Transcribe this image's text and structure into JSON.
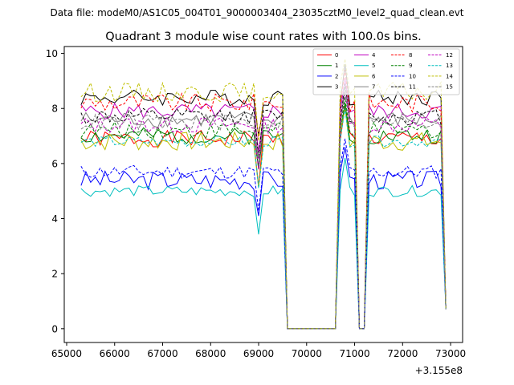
{
  "chart_data": {
    "type": "line",
    "suptitle": "Data file: modeM0/AS1C05_004T01_9000003404_23035cztM0_level2_quad_clean.evt",
    "title": "Quadrant 3 module wise count rates with 100.0s bins.",
    "xlabel": "",
    "ylabel": "",
    "x_offset_label": "+3.155e8",
    "xlim": [
      64950,
      73250
    ],
    "ylim": [
      -0.5,
      10.25
    ],
    "x_ticks": [
      65000,
      66000,
      67000,
      68000,
      69000,
      70000,
      71000,
      72000,
      73000
    ],
    "x_tick_labels": [
      "65000",
      "66000",
      "67000",
      "68000",
      "69000",
      "70000",
      "71000",
      "72000",
      "73000"
    ],
    "y_ticks": [
      0,
      2,
      4,
      6,
      8,
      10
    ],
    "y_tick_labels": [
      "0",
      "2",
      "4",
      "6",
      "8",
      "10"
    ],
    "legend_location": "upper right",
    "legend_columns": 4,
    "time_grid": {
      "start": 65300,
      "step": 100,
      "count": 77
    },
    "gaps": [
      [
        69550,
        70650
      ],
      [
        71050,
        71250
      ]
    ],
    "series": [
      {
        "name": "0",
        "color": "#ff0000",
        "style": "solid",
        "level": 6.9,
        "amp": 0.3,
        "seed": 1
      },
      {
        "name": "1",
        "color": "#008000",
        "style": "solid",
        "level": 7.0,
        "amp": 0.3,
        "seed": 2
      },
      {
        "name": "2",
        "color": "#0000ff",
        "style": "solid",
        "level": 5.4,
        "amp": 0.35,
        "seed": 3
      },
      {
        "name": "3",
        "color": "#000000",
        "style": "solid",
        "level": 8.4,
        "amp": 0.3,
        "seed": 4
      },
      {
        "name": "4",
        "color": "#bf00bf",
        "style": "solid",
        "level": 7.9,
        "amp": 0.3,
        "seed": 5
      },
      {
        "name": "5",
        "color": "#00bfbf",
        "style": "solid",
        "level": 5.0,
        "amp": 0.2,
        "seed": 6
      },
      {
        "name": "6",
        "color": "#bfbf00",
        "style": "solid",
        "level": 6.8,
        "amp": 0.35,
        "seed": 7
      },
      {
        "name": "7",
        "color": "#808080",
        "style": "solid",
        "level": 7.6,
        "amp": 0.3,
        "seed": 8
      },
      {
        "name": "8",
        "color": "#ff0000",
        "style": "dashed",
        "level": 8.2,
        "amp": 0.35,
        "seed": 9
      },
      {
        "name": "9",
        "color": "#008000",
        "style": "dashed",
        "level": 7.2,
        "amp": 0.3,
        "seed": 10
      },
      {
        "name": "10",
        "color": "#0000ff",
        "style": "dashed",
        "level": 5.7,
        "amp": 0.25,
        "seed": 11
      },
      {
        "name": "11",
        "color": "#000000",
        "style": "dashed",
        "level": 7.7,
        "amp": 0.3,
        "seed": 12
      },
      {
        "name": "12",
        "color": "#bf00bf",
        "style": "dashed",
        "level": 7.4,
        "amp": 0.3,
        "seed": 13
      },
      {
        "name": "13",
        "color": "#00bfbf",
        "style": "dashed",
        "level": 6.8,
        "amp": 0.2,
        "seed": 14
      },
      {
        "name": "14",
        "color": "#bfbf00",
        "style": "dashed",
        "level": 8.6,
        "amp": 0.35,
        "seed": 15
      },
      {
        "name": "15",
        "color": "#808080",
        "style": "dashed",
        "level": 7.5,
        "amp": 0.3,
        "seed": 16
      }
    ]
  }
}
